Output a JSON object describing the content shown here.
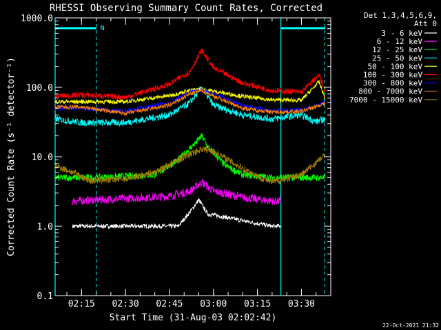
{
  "chart_data": {
    "type": "line",
    "title": "RHESSI Observing Summary Count Rates, Corrected",
    "xlabel": "Start Time (31-Aug-03 02:02:42)",
    "ylabel": "Corrected Count Rate (s⁻¹ detector⁻¹)",
    "y_scale": "log",
    "ylim": [
      0.1,
      1000.0
    ],
    "xlim": [
      "02:06",
      "03:40"
    ],
    "y_ticks": [
      "1000.0",
      "100.0",
      "10.0",
      "1.0",
      "0.1"
    ],
    "x_ticks": [
      "02:15",
      "02:30",
      "02:45",
      "03:00",
      "03:15",
      "03:30"
    ],
    "legend_title": [
      "Det 1,3,4,5,6,9,",
      "Att 0"
    ],
    "legend_placement": "right",
    "series": [
      {
        "name": "3 - 6 keV",
        "color": "#ffffff",
        "points": [
          [
            "02:12",
            1.0
          ],
          [
            "02:40",
            1.0
          ],
          [
            "02:48",
            1.0
          ],
          [
            "02:52",
            1.6
          ],
          [
            "02:55",
            2.4
          ],
          [
            "02:58",
            1.5
          ],
          [
            "03:02",
            1.4
          ],
          [
            "03:10",
            1.2
          ],
          [
            "03:20",
            1.0
          ],
          [
            "03:23",
            1.0
          ]
        ]
      },
      {
        "name": "6 - 12 keV",
        "color": "#ff00ff",
        "points": [
          [
            "02:12",
            2.3
          ],
          [
            "02:30",
            2.5
          ],
          [
            "02:45",
            2.7
          ],
          [
            "02:52",
            3.2
          ],
          [
            "02:56",
            4.3
          ],
          [
            "03:00",
            3.2
          ],
          [
            "03:10",
            2.6
          ],
          [
            "03:20",
            2.3
          ],
          [
            "03:23",
            2.3
          ]
        ]
      },
      {
        "name": "12 - 25 keV",
        "color": "#00ff00",
        "points": [
          [
            "02:06",
            5.0
          ],
          [
            "02:20",
            5.0
          ],
          [
            "02:40",
            5.5
          ],
          [
            "02:48",
            9.0
          ],
          [
            "02:54",
            16.0
          ],
          [
            "02:56",
            20.0
          ],
          [
            "02:58",
            14.0
          ],
          [
            "03:04",
            7.5
          ],
          [
            "03:10",
            5.5
          ],
          [
            "03:20",
            5.0
          ],
          [
            "03:31",
            5.0
          ],
          [
            "03:38",
            5.0
          ]
        ]
      },
      {
        "name": "25 - 50 keV",
        "color": "#00ffff",
        "points": [
          [
            "02:06",
            35
          ],
          [
            "02:15",
            31
          ],
          [
            "02:30",
            31
          ],
          [
            "02:45",
            40
          ],
          [
            "02:52",
            60
          ],
          [
            "02:56",
            100
          ],
          [
            "03:00",
            55
          ],
          [
            "03:10",
            40
          ],
          [
            "03:20",
            35
          ],
          [
            "03:30",
            40
          ],
          [
            "03:35",
            32
          ],
          [
            "03:38",
            35
          ]
        ]
      },
      {
        "name": "50 - 100 keV",
        "color": "#ffff00",
        "points": [
          [
            "02:06",
            62
          ],
          [
            "02:15",
            62
          ],
          [
            "02:30",
            62
          ],
          [
            "02:45",
            76
          ],
          [
            "02:52",
            90
          ],
          [
            "02:56",
            95
          ],
          [
            "03:00",
            88
          ],
          [
            "03:10",
            74
          ],
          [
            "03:20",
            66
          ],
          [
            "03:30",
            65
          ],
          [
            "03:36",
            120
          ],
          [
            "03:38",
            70
          ]
        ]
      },
      {
        "name": "100 - 300 keV",
        "color": "#ff0000",
        "points": [
          [
            "02:06",
            75
          ],
          [
            "02:15",
            78
          ],
          [
            "02:30",
            72
          ],
          [
            "02:45",
            110
          ],
          [
            "02:52",
            170
          ],
          [
            "02:56",
            340
          ],
          [
            "03:00",
            190
          ],
          [
            "03:10",
            115
          ],
          [
            "03:20",
            90
          ],
          [
            "03:30",
            85
          ],
          [
            "03:36",
            150
          ],
          [
            "03:38",
            90
          ]
        ]
      },
      {
        "name": "300 - 800 keV",
        "color": "#0000ff",
        "points": [
          [
            "02:06",
            50
          ],
          [
            "02:15",
            50
          ],
          [
            "02:30",
            45
          ],
          [
            "02:45",
            60
          ],
          [
            "02:52",
            85
          ],
          [
            "02:56",
            92
          ],
          [
            "03:00",
            80
          ],
          [
            "03:10",
            55
          ],
          [
            "03:20",
            46
          ],
          [
            "03:30",
            47
          ],
          [
            "03:38",
            60
          ]
        ]
      },
      {
        "name": "800 - 7000 keV",
        "color": "#ff8000",
        "points": [
          [
            "02:06",
            52
          ],
          [
            "02:15",
            52
          ],
          [
            "02:30",
            42
          ],
          [
            "02:45",
            55
          ],
          [
            "02:52",
            80
          ],
          [
            "02:56",
            90
          ],
          [
            "03:00",
            75
          ],
          [
            "03:10",
            50
          ],
          [
            "03:20",
            44
          ],
          [
            "03:30",
            45
          ],
          [
            "03:38",
            58
          ]
        ]
      },
      {
        "name": "7000 - 15000 keV",
        "color": "#a08000",
        "points": [
          [
            "02:06",
            7.5
          ],
          [
            "02:12",
            6.0
          ],
          [
            "02:18",
            4.5
          ],
          [
            "02:30",
            4.8
          ],
          [
            "02:40",
            6.0
          ],
          [
            "02:48",
            9.0
          ],
          [
            "02:56",
            13.0
          ],
          [
            "03:00",
            12.0
          ],
          [
            "03:06",
            8.5
          ],
          [
            "03:14",
            5.5
          ],
          [
            "03:20",
            4.3
          ],
          [
            "03:30",
            5.5
          ],
          [
            "03:38",
            10.5
          ]
        ]
      }
    ],
    "markers": {
      "flag_label": "N",
      "flag_color": "#00ffff",
      "dashed_lines": [
        "02:20",
        "03:38"
      ],
      "solid_lines": [
        "02:06",
        "03:23"
      ]
    }
  },
  "timestamp": "22-Oct-2021 21:32"
}
